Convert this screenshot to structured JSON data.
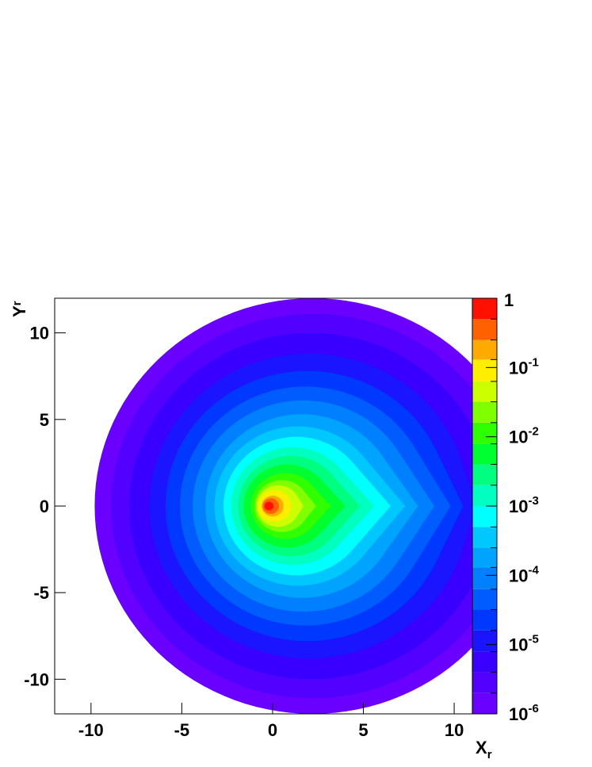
{
  "chart_data": {
    "type": "contour",
    "x_label": {
      "text": "X",
      "subscript": "r"
    },
    "y_label": {
      "text": "Y",
      "subscript": "r"
    },
    "xlim": [
      -12,
      11
    ],
    "ylim": [
      -12,
      12
    ],
    "xticks": [
      -10,
      -5,
      0,
      5,
      10
    ],
    "yticks": [
      -10,
      -5,
      0,
      5,
      10
    ],
    "z_log": true,
    "zlim": [
      1e-06,
      1
    ],
    "zticks": [
      {
        "value": 1e-06,
        "label": "10",
        "exponent": "-6"
      },
      {
        "value": 1e-05,
        "label": "10",
        "exponent": "-5"
      },
      {
        "value": 0.0001,
        "label": "10",
        "exponent": "-4"
      },
      {
        "value": 0.001,
        "label": "10",
        "exponent": "-3"
      },
      {
        "value": 0.01,
        "label": "10",
        "exponent": "-2"
      },
      {
        "value": 0.1,
        "label": "10",
        "exponent": "-1"
      },
      1
    ],
    "contours": [
      {
        "level": 1e-06,
        "color": "#6a00ff",
        "cx": 2.2,
        "r": 12.0,
        "tip": 13
      },
      {
        "level": 2e-06,
        "color": "#5200ff",
        "cx": 2.2,
        "r": 11.1,
        "tip": 12.5
      },
      {
        "level": 4e-06,
        "color": "#3a00ff",
        "cx": 2.1,
        "r": 10.0,
        "tip": 11.8
      },
      {
        "level": 7.9e-06,
        "color": "#1a14ff",
        "cx": 2.0,
        "r": 8.8,
        "tip": 11.2
      },
      {
        "level": 1.6e-05,
        "color": "#0038ff",
        "cx": 1.9,
        "r": 7.8,
        "tip": 10.5
      },
      {
        "level": 3.2e-05,
        "color": "#005cff",
        "cx": 1.8,
        "r": 6.9,
        "tip": 9.8
      },
      {
        "level": 6.3e-05,
        "color": "#0080ff",
        "cx": 1.7,
        "r": 6.1,
        "tip": 8.9
      },
      {
        "level": 0.00013,
        "color": "#00a4ff",
        "cx": 1.6,
        "r": 5.3,
        "tip": 8.0
      },
      {
        "level": 0.00025,
        "color": "#00c8ff",
        "cx": 1.4,
        "r": 4.6,
        "tip": 7.3
      },
      {
        "level": 0.0005,
        "color": "#00ffff",
        "cx": 1.3,
        "r": 4.0,
        "tip": 6.5
      },
      {
        "level": 0.001,
        "color": "#00ffc0",
        "cx": 1.1,
        "r": 3.4,
        "tip": 5.6
      },
      {
        "level": 0.002,
        "color": "#00ff80",
        "cx": 1.0,
        "r": 2.9,
        "tip": 4.8
      },
      {
        "level": 0.004,
        "color": "#00ff30",
        "cx": 0.8,
        "r": 2.4,
        "tip": 4.0
      },
      {
        "level": 0.0079,
        "color": "#30ff00",
        "cx": 0.7,
        "r": 1.9,
        "tip": 3.2
      },
      {
        "level": 0.016,
        "color": "#80ff00",
        "cx": 0.5,
        "r": 1.5,
        "tip": 2.4
      },
      {
        "level": 0.032,
        "color": "#ccff00",
        "cx": 0.3,
        "r": 1.2,
        "tip": 1.7
      },
      {
        "level": 0.063,
        "color": "#ffee00",
        "cx": 0.1,
        "r": 0.9,
        "tip": 1.0
      },
      {
        "level": 0.13,
        "color": "#ffaa00",
        "cx": 0.0,
        "r": 0.6,
        "tip": null
      },
      {
        "level": 0.25,
        "color": "#ff6000",
        "cx": -0.1,
        "r": 0.45,
        "tip": null
      },
      {
        "level": 0.5,
        "color": "#ff1000",
        "cx": -0.2,
        "r": 0.25,
        "tip": null
      }
    ]
  }
}
